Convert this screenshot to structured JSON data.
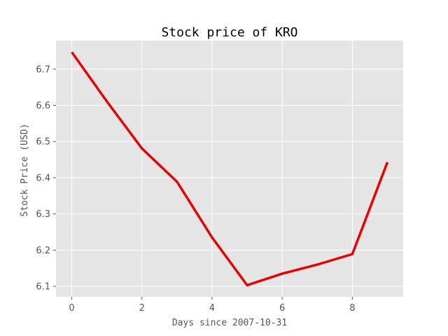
{
  "chart_data": {
    "type": "line",
    "title": "Stock price of KRO",
    "xlabel": "Days since 2007-10-31",
    "ylabel": "Stock Price (USD)",
    "x": [
      0,
      1,
      2,
      3,
      4,
      5,
      6,
      7,
      8,
      9
    ],
    "series": [
      {
        "values": [
          6.747,
          6.611,
          6.481,
          6.389,
          6.235,
          6.103,
          6.135,
          6.16,
          6.189,
          6.443
        ],
        "color": "#e60000"
      }
    ],
    "xlim": [
      -0.45,
      9.45
    ],
    "ylim": [
      6.071,
      6.779
    ],
    "xticks": [
      0,
      2,
      4,
      6,
      8
    ],
    "xtick_labels": [
      "0",
      "2",
      "4",
      "6",
      "8"
    ],
    "yticks": [
      6.1,
      6.2,
      6.3,
      6.4,
      6.5,
      6.6,
      6.7
    ],
    "ytick_labels": [
      "6.1",
      "6.2",
      "6.3",
      "6.4",
      "6.5",
      "6.6",
      "6.7"
    ],
    "grid": true,
    "style": "ggplot",
    "colors": {
      "plot_background": "#e5e5e5",
      "grid": "#ffffff",
      "line": "#e60000",
      "tick": "#555555"
    }
  }
}
